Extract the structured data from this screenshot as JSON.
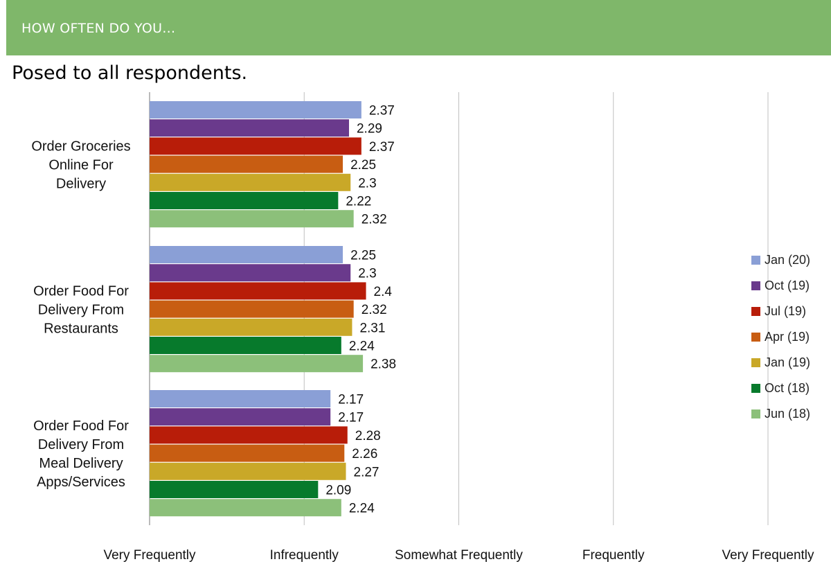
{
  "header": {
    "title": "HOW OFTEN DO YOU..."
  },
  "subtitle": "Posed to all respondents.",
  "chart_data": {
    "type": "bar",
    "orientation": "horizontal",
    "categories": [
      "Order Groceries Online For Delivery",
      "Order Food For Delivery From Restaurants",
      "Order Food For Delivery From Meal Delivery Apps/Services"
    ],
    "category_lines": [
      [
        "Order Groceries",
        "Online For",
        "Delivery"
      ],
      [
        "Order Food For",
        "Delivery From",
        "Restaurants"
      ],
      [
        "Order Food For",
        "Delivery From",
        "Meal Delivery",
        "Apps/Services"
      ]
    ],
    "series": [
      {
        "name": "Jan (20)",
        "color": "#8a9fd6",
        "values": [
          2.37,
          2.25,
          2.17
        ]
      },
      {
        "name": "Oct (19)",
        "color": "#6a3a8c",
        "values": [
          2.29,
          2.3,
          2.17
        ]
      },
      {
        "name": "Jul (19)",
        "color": "#b81d09",
        "values": [
          2.37,
          2.4,
          2.28
        ]
      },
      {
        "name": "Apr (19)",
        "color": "#c85d12",
        "values": [
          2.25,
          2.32,
          2.26
        ]
      },
      {
        "name": "Jan (19)",
        "color": "#c9a828",
        "values": [
          2.3,
          2.31,
          2.27
        ]
      },
      {
        "name": "Oct (18)",
        "color": "#077a2c",
        "values": [
          2.22,
          2.24,
          2.09
        ]
      },
      {
        "name": "Jun (18)",
        "color": "#8cc07a",
        "values": [
          2.32,
          2.38,
          2.24
        ]
      }
    ],
    "xlim": [
      1,
      5
    ],
    "x_ticks": [
      {
        "value": 1,
        "label": "Very Frequently"
      },
      {
        "value": 2,
        "label": "Infrequently"
      },
      {
        "value": 3,
        "label": "Somewhat Frequently"
      },
      {
        "value": 4,
        "label": "Frequently"
      },
      {
        "value": 5,
        "label": "Very Frequently"
      }
    ],
    "grid": true,
    "legend": "right"
  }
}
